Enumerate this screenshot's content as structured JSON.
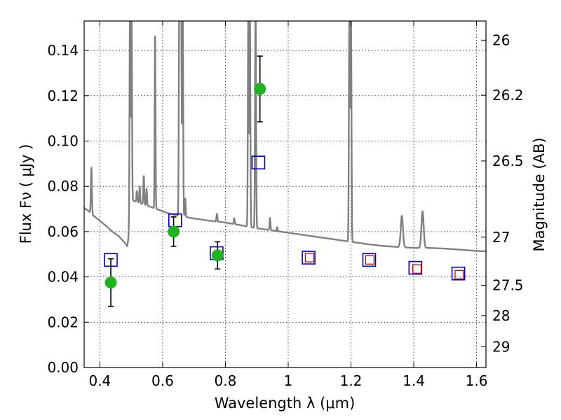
{
  "chart_data": {
    "type": "scatter",
    "xlabel": "Wavelength  λ (μm)",
    "ylabel": "Flux  Fν  ( μJy )",
    "y2label": "Magnitude (AB)",
    "xlim": [
      0.35,
      1.63
    ],
    "ylim": [
      0.0,
      0.153
    ],
    "grid": true,
    "x_ticks": [
      {
        "value": 0.4,
        "label": "0.4"
      },
      {
        "value": 0.6,
        "label": "0.6"
      },
      {
        "value": 0.8,
        "label": "0.8"
      },
      {
        "value": 1.0,
        "label": "1"
      },
      {
        "value": 1.2,
        "label": "1.2"
      },
      {
        "value": 1.4,
        "label": "1.4"
      },
      {
        "value": 1.6,
        "label": "1.6"
      }
    ],
    "y_ticks": [
      {
        "value": 0.0,
        "label": "0.00"
      },
      {
        "value": 0.02,
        "label": "0.02"
      },
      {
        "value": 0.04,
        "label": "0.04"
      },
      {
        "value": 0.06,
        "label": "0.06"
      },
      {
        "value": 0.08,
        "label": "0.08"
      },
      {
        "value": 0.1,
        "label": "0.10"
      },
      {
        "value": 0.12,
        "label": "0.12"
      },
      {
        "value": 0.14,
        "label": "0.14"
      }
    ],
    "y2_ticks": [
      {
        "value": 26.0,
        "label": "26"
      },
      {
        "value": 26.2,
        "label": "26.2"
      },
      {
        "value": 26.5,
        "label": "26.5"
      },
      {
        "value": 27.0,
        "label": "27"
      },
      {
        "value": 27.5,
        "label": "27.5"
      },
      {
        "value": 28.0,
        "label": "28"
      },
      {
        "value": 29.0,
        "label": "29"
      }
    ],
    "observed": {
      "color": "#1fb31f",
      "points": [
        {
          "x": 0.435,
          "y": 0.0375,
          "err": 0.0105
        },
        {
          "x": 0.635,
          "y": 0.06,
          "err": 0.0065
        },
        {
          "x": 0.775,
          "y": 0.0495,
          "err": 0.006
        },
        {
          "x": 0.91,
          "y": 0.123,
          "err": 0.0145
        }
      ]
    },
    "model_photometry": {
      "color": "#0000cc",
      "points": [
        {
          "x": 0.435,
          "y": 0.0475
        },
        {
          "x": 0.64,
          "y": 0.065
        },
        {
          "x": 0.772,
          "y": 0.0505
        },
        {
          "x": 0.905,
          "y": 0.0905
        },
        {
          "x": 1.065,
          "y": 0.0485
        },
        {
          "x": 1.258,
          "y": 0.0475
        },
        {
          "x": 1.405,
          "y": 0.044
        },
        {
          "x": 1.542,
          "y": 0.0415
        }
      ]
    },
    "model_photometry_inner": {
      "color": "#cc0000",
      "points": [
        {
          "x": 1.068,
          "y": 0.0485
        },
        {
          "x": 1.26,
          "y": 0.0475
        },
        {
          "x": 1.41,
          "y": 0.0435
        },
        {
          "x": 1.545,
          "y": 0.041
        }
      ]
    },
    "spectrum": {
      "color": "#808080",
      "continuum": [
        [
          0.35,
          0.0705
        ],
        [
          0.365,
          0.069
        ],
        [
          0.38,
          0.067
        ],
        [
          0.4,
          0.0648
        ],
        [
          0.42,
          0.0625
        ],
        [
          0.44,
          0.06
        ],
        [
          0.46,
          0.058
        ],
        [
          0.48,
          0.055
        ],
        [
          0.487,
          0.0535
        ],
        [
          0.49,
          0.056
        ],
        [
          0.5,
          0.074
        ],
        [
          0.52,
          0.073
        ],
        [
          0.55,
          0.0715
        ],
        [
          0.58,
          0.07
        ],
        [
          0.6,
          0.069
        ],
        [
          0.62,
          0.068
        ],
        [
          0.65,
          0.067
        ],
        [
          0.7,
          0.0658
        ],
        [
          0.75,
          0.0648
        ],
        [
          0.8,
          0.064
        ],
        [
          0.85,
          0.0628
        ],
        [
          0.9,
          0.0615
        ],
        [
          0.95,
          0.0605
        ],
        [
          1.0,
          0.0595
        ],
        [
          1.05,
          0.0585
        ],
        [
          1.1,
          0.0575
        ],
        [
          1.15,
          0.0565
        ],
        [
          1.2,
          0.0555
        ],
        [
          1.25,
          0.0545
        ],
        [
          1.3,
          0.0537
        ],
        [
          1.35,
          0.0532
        ],
        [
          1.4,
          0.0528
        ],
        [
          1.45,
          0.0528
        ],
        [
          1.5,
          0.0525
        ],
        [
          1.55,
          0.052
        ],
        [
          1.6,
          0.0515
        ],
        [
          1.63,
          0.0513
        ]
      ],
      "lines": [
        {
          "x": 0.373,
          "peak": 0.0885,
          "width": 0.0022
        },
        {
          "x": 0.496,
          "peak": 0.16,
          "width": 0.002
        },
        {
          "x": 0.501,
          "peak": 0.16,
          "width": 0.002
        },
        {
          "x": 0.518,
          "peak": 0.078,
          "width": 0.002
        },
        {
          "x": 0.527,
          "peak": 0.08,
          "width": 0.0018
        },
        {
          "x": 0.54,
          "peak": 0.085,
          "width": 0.002
        },
        {
          "x": 0.549,
          "peak": 0.079,
          "width": 0.0018
        },
        {
          "x": 0.576,
          "peak": 0.15,
          "width": 0.0018
        },
        {
          "x": 0.653,
          "peak": 0.16,
          "width": 0.002
        },
        {
          "x": 0.656,
          "peak": 0.16,
          "width": 0.002
        },
        {
          "x": 0.659,
          "peak": 0.16,
          "width": 0.002
        },
        {
          "x": 0.664,
          "peak": 0.16,
          "width": 0.002
        },
        {
          "x": 0.672,
          "peak": 0.075,
          "width": 0.0018
        },
        {
          "x": 0.773,
          "peak": 0.068,
          "width": 0.002
        },
        {
          "x": 0.828,
          "peak": 0.066,
          "width": 0.002
        },
        {
          "x": 0.873,
          "peak": 0.16,
          "width": 0.002
        },
        {
          "x": 0.878,
          "peak": 0.16,
          "width": 0.002
        },
        {
          "x": 0.896,
          "peak": 0.16,
          "width": 0.0022
        },
        {
          "x": 0.942,
          "peak": 0.066,
          "width": 0.002
        },
        {
          "x": 0.965,
          "peak": 0.062,
          "width": 0.002
        },
        {
          "x": 1.195,
          "peak": 0.16,
          "width": 0.0022
        },
        {
          "x": 1.2,
          "peak": 0.16,
          "width": 0.0022
        },
        {
          "x": 1.362,
          "peak": 0.067,
          "width": 0.005
        },
        {
          "x": 1.428,
          "peak": 0.069,
          "width": 0.005
        }
      ]
    }
  }
}
